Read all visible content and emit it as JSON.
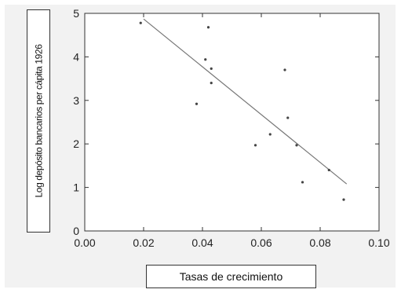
{
  "chart_data": {
    "type": "scatter",
    "xlabel": "Tasas de crecimiento",
    "ylabel": "Log depósito bancarios per cápita 1926",
    "xlim": [
      0.0,
      0.1
    ],
    "ylim": [
      0,
      5
    ],
    "x_ticks": [
      "0.00",
      "0.02",
      "0.04",
      "0.06",
      "0.08",
      "0.10"
    ],
    "y_ticks": [
      "0",
      "1",
      "2",
      "3",
      "4",
      "5"
    ],
    "grid": false,
    "points": [
      {
        "x": 0.019,
        "y": 4.78
      },
      {
        "x": 0.038,
        "y": 2.92
      },
      {
        "x": 0.041,
        "y": 3.94
      },
      {
        "x": 0.042,
        "y": 4.68
      },
      {
        "x": 0.043,
        "y": 3.73
      },
      {
        "x": 0.043,
        "y": 3.4
      },
      {
        "x": 0.058,
        "y": 1.97
      },
      {
        "x": 0.063,
        "y": 2.22
      },
      {
        "x": 0.068,
        "y": 3.7
      },
      {
        "x": 0.069,
        "y": 2.6
      },
      {
        "x": 0.072,
        "y": 1.97
      },
      {
        "x": 0.074,
        "y": 1.12
      },
      {
        "x": 0.083,
        "y": 1.4
      },
      {
        "x": 0.088,
        "y": 0.72
      }
    ],
    "trendline": {
      "x": [
        0.02,
        0.089
      ],
      "y": [
        4.87,
        1.08
      ]
    },
    "colors": {
      "points": "#444444",
      "line": "#777777",
      "axes": "#333333"
    }
  }
}
